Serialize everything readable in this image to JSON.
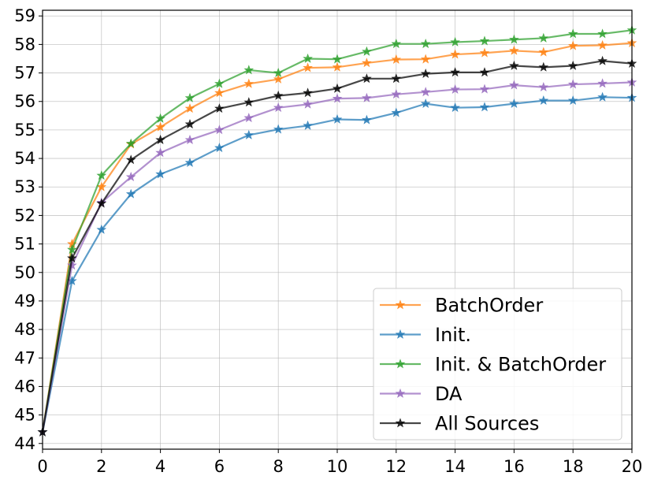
{
  "chart_data": {
    "type": "line",
    "title": "",
    "xlabel": "",
    "ylabel": "",
    "xlim": [
      0,
      20
    ],
    "ylim": [
      43.8,
      59.2
    ],
    "x_ticks": [
      0,
      2,
      4,
      6,
      8,
      10,
      12,
      14,
      16,
      18,
      20
    ],
    "y_ticks": [
      44,
      45,
      46,
      47,
      48,
      49,
      50,
      51,
      52,
      53,
      54,
      55,
      56,
      57,
      58,
      59
    ],
    "grid": true,
    "legend_position": "lower-right",
    "x": [
      0,
      1,
      2,
      3,
      4,
      5,
      6,
      7,
      8,
      9,
      10,
      11,
      12,
      13,
      14,
      15,
      16,
      17,
      18,
      19,
      20
    ],
    "series": [
      {
        "name": "BatchOrder",
        "color": "#ff7f0e",
        "values": [
          44.4,
          51.0,
          53.0,
          54.5,
          55.1,
          55.75,
          56.3,
          56.62,
          56.78,
          57.18,
          57.2,
          57.35,
          57.47,
          57.48,
          57.65,
          57.7,
          57.78,
          57.73,
          57.95,
          57.97,
          58.05
        ]
      },
      {
        "name": "Init.",
        "color": "#1f77b4",
        "values": [
          44.4,
          49.7,
          51.5,
          52.75,
          53.45,
          53.85,
          54.37,
          54.82,
          55.02,
          55.15,
          55.37,
          55.35,
          55.6,
          55.92,
          55.78,
          55.8,
          55.92,
          56.03,
          56.03,
          56.15,
          56.13
        ]
      },
      {
        "name": "Init. & BatchOrder",
        "color": "#2ca02c",
        "values": [
          44.4,
          50.8,
          53.4,
          54.52,
          55.4,
          56.12,
          56.62,
          57.1,
          57.0,
          57.5,
          57.48,
          57.75,
          58.02,
          58.02,
          58.08,
          58.12,
          58.17,
          58.22,
          58.37,
          58.37,
          58.5
        ]
      },
      {
        "name": "DA",
        "color": "#9467bd",
        "values": [
          44.4,
          50.25,
          52.45,
          53.35,
          54.2,
          54.65,
          55.0,
          55.42,
          55.78,
          55.9,
          56.1,
          56.12,
          56.25,
          56.33,
          56.42,
          56.43,
          56.57,
          56.5,
          56.6,
          56.63,
          56.67
        ]
      },
      {
        "name": "All Sources",
        "color": "#000000",
        "values": [
          44.4,
          50.5,
          52.42,
          53.95,
          54.65,
          55.2,
          55.75,
          55.97,
          56.2,
          56.3,
          56.45,
          56.8,
          56.8,
          56.97,
          57.02,
          57.02,
          57.25,
          57.2,
          57.25,
          57.42,
          57.33
        ]
      }
    ]
  }
}
